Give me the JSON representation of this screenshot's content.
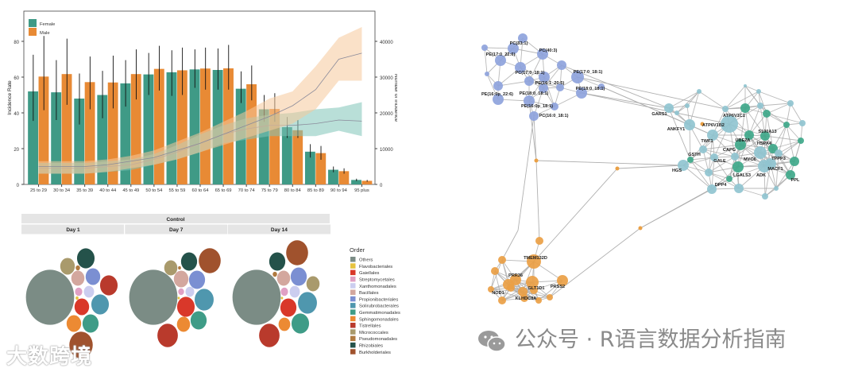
{
  "chart_data": [
    {
      "type": "bar",
      "legend": {
        "placement": "top-left",
        "entries": [
          "Female",
          "Male"
        ]
      },
      "ylabel": "Incidence Rate",
      "y2label": "Number of Incidence",
      "ylim": [
        0,
        95
      ],
      "y2lim": [
        0,
        47500
      ],
      "yticks": [
        "0",
        "20",
        "40",
        "60",
        "80"
      ],
      "y2ticks": [
        "0",
        "10000",
        "20000",
        "30000",
        "40000"
      ],
      "categories": [
        "25 to 29",
        "30 to 34",
        "35 to 39",
        "40 to 44",
        "45 to 49",
        "50 to 54",
        "55 to 59",
        "60 to 64",
        "65 to 69",
        "70 to 74",
        "75 to 79",
        "80 to 84",
        "85 to 89",
        "90 to 94",
        "95 plus"
      ],
      "series": [
        {
          "name": "Female",
          "color": "#3f9a86",
          "values": [
            52,
            51.5,
            48,
            50,
            56.5,
            61.5,
            62.7,
            64.3,
            64,
            53.5,
            42,
            32,
            18.3,
            8.2,
            2.5
          ],
          "err_low": [
            35.5,
            36,
            33.5,
            37,
            43.5,
            50,
            49.5,
            54,
            53,
            45.5,
            35,
            26,
            15,
            6.8,
            1.8
          ],
          "err_high": [
            72.5,
            69.5,
            62,
            63.5,
            69.5,
            73.5,
            75,
            75.5,
            76,
            63.2,
            50,
            37.7,
            22.5,
            10,
            3.2
          ]
        },
        {
          "name": "Male",
          "color": "#e88a35",
          "values": [
            60.3,
            61.7,
            57.2,
            57,
            61.7,
            64.6,
            63.8,
            64.8,
            64.9,
            56,
            42.2,
            30.3,
            17.5,
            7.4,
            2
          ],
          "err_low": [
            41.5,
            44.5,
            42,
            42.5,
            47.5,
            52.5,
            50,
            53,
            53,
            47,
            35,
            26,
            13.8,
            6,
            1.5
          ],
          "err_high": [
            83,
            81.5,
            71.5,
            72,
            75.5,
            77.5,
            76.5,
            76.5,
            78,
            66.5,
            51,
            36,
            21.5,
            9,
            2.5
          ]
        }
      ],
      "count_series": [
        {
          "name": "Female",
          "band_color": "#7fc4b8",
          "values": [
            4500,
            4500,
            4500,
            5000,
            5500,
            7000,
            9000,
            11500,
            14000,
            15500,
            16500,
            16500,
            17000,
            18000,
            17700
          ],
          "low": [
            3000,
            3000,
            3000,
            3500,
            4000,
            5500,
            7000,
            9000,
            11500,
            12500,
            13500,
            13500,
            13500,
            15000,
            13500
          ],
          "high": [
            6000,
            6000,
            6000,
            6500,
            7000,
            8500,
            11000,
            14000,
            16500,
            18500,
            19500,
            20000,
            21000,
            21500,
            23000
          ]
        },
        {
          "name": "Male",
          "band_color": "#f5c99a",
          "values": [
            5000,
            5000,
            5000,
            5500,
            6500,
            7500,
            9500,
            11500,
            14000,
            16500,
            19000,
            22000,
            26500,
            35000,
            36700
          ],
          "low": [
            3000,
            3000,
            3000,
            3500,
            4500,
            5500,
            7000,
            9000,
            11000,
            13000,
            15000,
            17000,
            21000,
            29000,
            29000
          ],
          "high": [
            6500,
            6500,
            6500,
            7000,
            8000,
            9500,
            12000,
            14500,
            17500,
            20500,
            24000,
            26000,
            33000,
            41000,
            44000
          ]
        }
      ]
    },
    {
      "type": "packed-bubble",
      "strip_title": "Control",
      "panels": [
        "Day 1",
        "Day 7",
        "Day 14"
      ],
      "legend": {
        "title": "Order",
        "placement": "right",
        "entries": [
          {
            "name": "Others",
            "color": "#7b8c85"
          },
          {
            "name": "Flavobacteriales",
            "color": "#e6c340"
          },
          {
            "name": "Gaiellales",
            "color": "#d9382a"
          },
          {
            "name": "Streptomycetales",
            "color": "#e0a0c4"
          },
          {
            "name": "Xanthomonadales",
            "color": "#cbcdef"
          },
          {
            "name": "Bacillales",
            "color": "#d3a79e"
          },
          {
            "name": "Propionibacteriales",
            "color": "#7b8fd2"
          },
          {
            "name": "Solirubrobacterales",
            "color": "#4f97ae"
          },
          {
            "name": "Gemmatimonadales",
            "color": "#3f9c87"
          },
          {
            "name": "Sphingomonadales",
            "color": "#ec8a33"
          },
          {
            "name": "Tistrellales",
            "color": "#b93a2c"
          },
          {
            "name": "Micrococcales",
            "color": "#a99a6c"
          },
          {
            "name": "Pseudomonadales",
            "color": "#b07a40"
          },
          {
            "name": "Rhizobiales",
            "color": "#24524a"
          },
          {
            "name": "Burkholderiales",
            "color": "#a0522d"
          }
        ]
      }
    },
    {
      "type": "network",
      "cluster_colors": {
        "lipid": "#8ea3dc",
        "protein": "#90c4d0",
        "protein_hub": "#3fa88a",
        "gene": "#eaa045"
      },
      "labels": {
        "lipid": [
          "PC(33:1)",
          "PC(40:3)",
          "PE(17:0_22:6)",
          "PC(17:0_18:1)",
          "PE(17:0_18:1)",
          "PE(16:1_20:5)",
          "PE(18:0_18:1)",
          "PE(16:0p_22:6)",
          "PE(18:0_18:1)",
          "PE(16:0p_18:1)",
          "PC(16:0_18:1)"
        ],
        "protein": [
          "GARS1",
          "ANKFY1",
          "ATP6V1B2",
          "ATP6V1C1",
          "S100A13",
          "UBE2A",
          "HSPA4",
          "TWF1",
          "CAPG",
          "GSTH",
          "GALE",
          "MYO6",
          "TPPP3",
          "MACF1",
          "HGS",
          "LGALS3",
          "ADK",
          "PPL",
          "DPP4"
        ],
        "gene": [
          "TMEM132D",
          "PRR36",
          "GLT1D1",
          "PRSS2",
          "NOD1",
          "KLHDC8A"
        ]
      }
    }
  ],
  "watermarks": {
    "left": "大数跨境",
    "right": "公众号 · R语言数据分析指南"
  }
}
